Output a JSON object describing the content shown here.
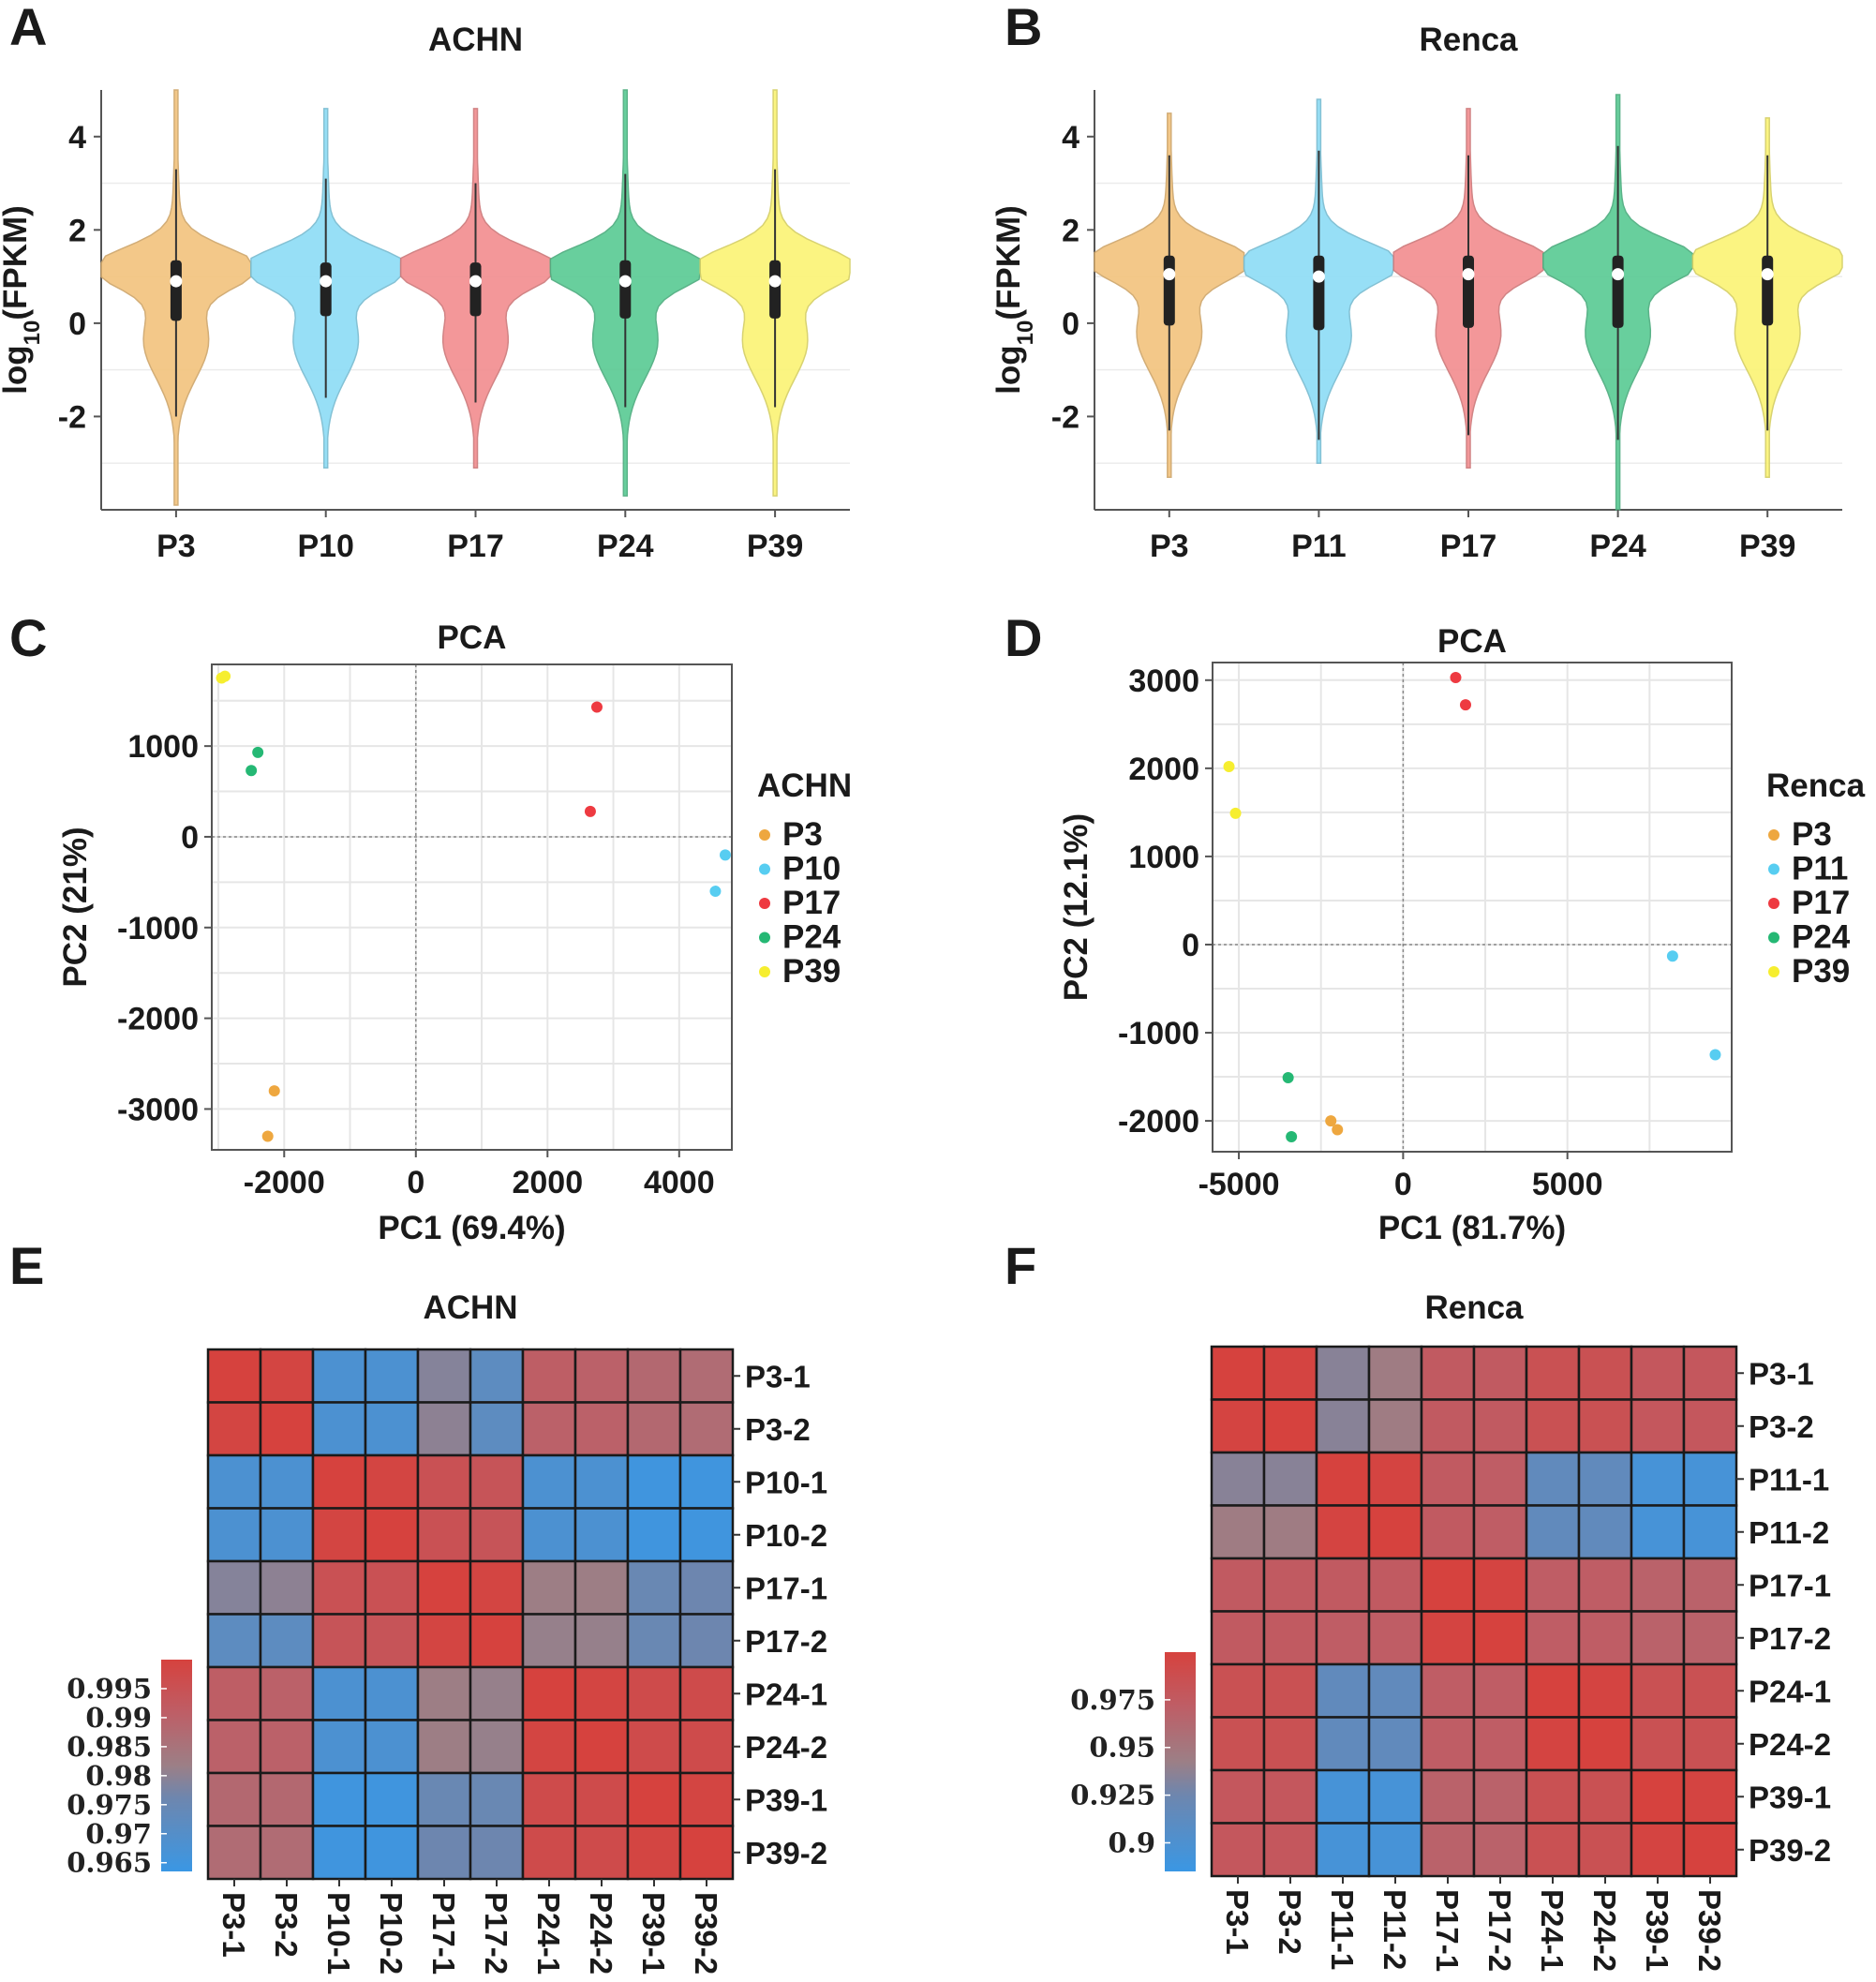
{
  "chart_data": [
    {
      "id": "A",
      "panel_label": "A",
      "type": "violin",
      "title": "ACHN",
      "ylabel": "log10(FPKM)",
      "ylabel_base": "log",
      "ylabel_sub": "10",
      "ylabel_rest": "(FPKM)",
      "ylim": [
        -4,
        5
      ],
      "yticks": [
        4,
        2,
        0,
        -2
      ],
      "ytick_labels": [
        "4",
        "2",
        "0",
        "-2"
      ],
      "categories": [
        "P3",
        "P10",
        "P17",
        "P24",
        "P39"
      ],
      "colors": [
        "#F3C47F",
        "#8FDDF6",
        "#F28F91",
        "#5CCB95",
        "#FBF477"
      ],
      "series": [
        {
          "name": "P3",
          "min": -3.9,
          "max": 5.0,
          "q1": 0.05,
          "median": 0.9,
          "q3": 1.35,
          "wlow": -2.0,
          "whigh": 3.3
        },
        {
          "name": "P10",
          "min": -3.1,
          "max": 4.6,
          "q1": 0.15,
          "median": 0.9,
          "q3": 1.3,
          "wlow": -1.6,
          "whigh": 3.1
        },
        {
          "name": "P17",
          "min": -3.1,
          "max": 4.6,
          "q1": 0.15,
          "median": 0.9,
          "q3": 1.3,
          "wlow": -1.7,
          "whigh": 3.0
        },
        {
          "name": "P24",
          "min": -3.7,
          "max": 5.0,
          "q1": 0.1,
          "median": 0.9,
          "q3": 1.35,
          "wlow": -1.8,
          "whigh": 3.2
        },
        {
          "name": "P39",
          "min": -3.7,
          "max": 5.0,
          "q1": 0.1,
          "median": 0.9,
          "q3": 1.35,
          "wlow": -1.8,
          "whigh": 3.3
        }
      ]
    },
    {
      "id": "B",
      "panel_label": "B",
      "type": "violin",
      "title": "Renca",
      "ylabel": "log10(FPKM)",
      "ylabel_base": "log",
      "ylabel_sub": "10",
      "ylabel_rest": "(FPKM)",
      "ylim": [
        -4,
        5
      ],
      "yticks": [
        4,
        2,
        0,
        -2
      ],
      "ytick_labels": [
        "4",
        "2",
        "0",
        "-2"
      ],
      "categories": [
        "P3",
        "P11",
        "P17",
        "P24",
        "P39"
      ],
      "colors": [
        "#F3C47F",
        "#8FDDF6",
        "#F28F91",
        "#5CCB95",
        "#FBF477"
      ],
      "series": [
        {
          "name": "P3",
          "min": -3.3,
          "max": 4.5,
          "q1": -0.05,
          "median": 1.05,
          "q3": 1.45,
          "wlow": -2.3,
          "whigh": 3.6
        },
        {
          "name": "P11",
          "min": -3.0,
          "max": 4.8,
          "q1": -0.15,
          "median": 1.0,
          "q3": 1.45,
          "wlow": -2.5,
          "whigh": 3.7
        },
        {
          "name": "P17",
          "min": -3.1,
          "max": 4.6,
          "q1": -0.1,
          "median": 1.05,
          "q3": 1.45,
          "wlow": -2.4,
          "whigh": 3.6
        },
        {
          "name": "P24",
          "min": -4.0,
          "max": 4.9,
          "q1": -0.1,
          "median": 1.05,
          "q3": 1.45,
          "wlow": -2.5,
          "whigh": 3.8
        },
        {
          "name": "P39",
          "min": -3.3,
          "max": 4.4,
          "q1": -0.05,
          "median": 1.05,
          "q3": 1.45,
          "wlow": -2.3,
          "whigh": 3.6
        }
      ]
    },
    {
      "id": "C",
      "panel_label": "C",
      "type": "scatter",
      "title": "PCA",
      "xlabel": "PC1 (69.4%)",
      "ylabel": "PC2 (21%)",
      "xlim": [
        -3100,
        4800
      ],
      "ylim": [
        -3450,
        1900
      ],
      "xticks": [
        -2000,
        0,
        2000,
        4000
      ],
      "xtick_labels": [
        "-2000",
        "0",
        "2000",
        "4000"
      ],
      "yticks": [
        1000,
        0,
        -1000,
        -2000,
        -3000
      ],
      "ytick_labels": [
        "1000",
        "0",
        "-1000",
        "-2000",
        "-3000"
      ],
      "xgrid_extra": [
        -3000,
        -1000,
        1000,
        3000
      ],
      "ygrid_extra": [
        1500,
        500,
        -500,
        -1500,
        -2500
      ],
      "legend_title": "ACHN",
      "legend_labels": [
        "P3",
        "P10",
        "P17",
        "P24",
        "P39"
      ],
      "colors": [
        "#EEA73F",
        "#57CDF1",
        "#EE3A41",
        "#25B874",
        "#F6EE2F"
      ],
      "series": [
        {
          "name": "P3",
          "x": [
            -2150,
            -2250
          ],
          "y": [
            -2800,
            -3300
          ]
        },
        {
          "name": "P10",
          "x": [
            4700,
            4550
          ],
          "y": [
            -200,
            -600
          ]
        },
        {
          "name": "P17",
          "x": [
            2750,
            2650
          ],
          "y": [
            1430,
            280
          ]
        },
        {
          "name": "P24",
          "x": [
            -2400,
            -2500
          ],
          "y": [
            930,
            730
          ]
        },
        {
          "name": "P39",
          "x": [
            -2900,
            -2950
          ],
          "y": [
            1770,
            1750
          ]
        }
      ]
    },
    {
      "id": "D",
      "panel_label": "D",
      "type": "scatter",
      "title": "PCA",
      "xlabel": "PC1 (81.7%)",
      "ylabel": "PC2 (12.1%)",
      "xlim": [
        -5800,
        10000
      ],
      "ylim": [
        -2350,
        3200
      ],
      "xticks": [
        -5000,
        0,
        5000
      ],
      "xtick_labels": [
        "-5000",
        "0",
        "5000"
      ],
      "yticks": [
        3000,
        2000,
        1000,
        0,
        -1000,
        -2000
      ],
      "ytick_labels": [
        "3000",
        "2000",
        "1000",
        "0",
        "-1000",
        "-2000"
      ],
      "xgrid_extra": [
        -2500,
        2500,
        7500
      ],
      "ygrid_extra": [
        2500,
        1500,
        500,
        -500,
        -1500
      ],
      "legend_title": "Renca",
      "legend_labels": [
        "P3",
        "P11",
        "P17",
        "P24",
        "P39"
      ],
      "colors": [
        "#EEA73F",
        "#57CDF1",
        "#EE3A41",
        "#25B874",
        "#F6EE2F"
      ],
      "series": [
        {
          "name": "P3",
          "x": [
            -2200,
            -2000
          ],
          "y": [
            -2000,
            -2100
          ]
        },
        {
          "name": "P11",
          "x": [
            8200,
            9500
          ],
          "y": [
            -130,
            -1250
          ]
        },
        {
          "name": "P17",
          "x": [
            1600,
            1900
          ],
          "y": [
            3030,
            2720
          ]
        },
        {
          "name": "P24",
          "x": [
            -3500,
            -3400
          ],
          "y": [
            -1510,
            -2180
          ]
        },
        {
          "name": "P39",
          "x": [
            -5300,
            -5100
          ],
          "y": [
            2020,
            1490
          ]
        }
      ]
    },
    {
      "id": "E",
      "panel_label": "E",
      "type": "heatmap",
      "title": "ACHN",
      "rows": [
        "P3-1",
        "P3-2",
        "P10-1",
        "P10-2",
        "P17-1",
        "P17-2",
        "P24-1",
        "P24-2",
        "P39-1",
        "P39-2"
      ],
      "cols": [
        "P3-1",
        "P3-2",
        "P10-1",
        "P10-2",
        "P17-1",
        "P17-2",
        "P24-1",
        "P24-2",
        "P39-1",
        "P39-2"
      ],
      "scale_min": 0.9635,
      "scale_max": 1.0,
      "colorbar_ticks": [
        0.995,
        0.99,
        0.985,
        0.98,
        0.975,
        0.97,
        0.965
      ],
      "colorbar_labels": [
        "0.995",
        "0.99",
        "0.985",
        "0.98",
        "0.975",
        "0.97",
        "0.965"
      ],
      "values": [
        [
          1.0,
          0.999,
          0.968,
          0.968,
          0.979,
          0.972,
          0.991,
          0.99,
          0.988,
          0.987
        ],
        [
          0.999,
          1.0,
          0.968,
          0.968,
          0.98,
          0.972,
          0.99,
          0.99,
          0.988,
          0.987
        ],
        [
          0.968,
          0.968,
          1.0,
          0.999,
          0.995,
          0.994,
          0.968,
          0.968,
          0.965,
          0.965
        ],
        [
          0.968,
          0.968,
          0.999,
          1.0,
          0.995,
          0.994,
          0.968,
          0.968,
          0.965,
          0.965
        ],
        [
          0.979,
          0.98,
          0.995,
          0.995,
          1.0,
          0.999,
          0.982,
          0.982,
          0.975,
          0.976
        ],
        [
          0.972,
          0.972,
          0.994,
          0.994,
          0.999,
          1.0,
          0.981,
          0.981,
          0.975,
          0.976
        ],
        [
          0.991,
          0.99,
          0.968,
          0.968,
          0.982,
          0.981,
          1.0,
          0.999,
          0.997,
          0.997
        ],
        [
          0.99,
          0.99,
          0.968,
          0.968,
          0.982,
          0.981,
          0.999,
          1.0,
          0.997,
          0.997
        ],
        [
          0.988,
          0.988,
          0.965,
          0.965,
          0.975,
          0.975,
          0.997,
          0.997,
          1.0,
          0.999
        ],
        [
          0.987,
          0.987,
          0.965,
          0.965,
          0.976,
          0.976,
          0.997,
          0.997,
          0.999,
          1.0
        ]
      ]
    },
    {
      "id": "F",
      "panel_label": "F",
      "type": "heatmap",
      "title": "Renca",
      "rows": [
        "P3-1",
        "P3-2",
        "P11-1",
        "P11-2",
        "P17-1",
        "P17-2",
        "P24-1",
        "P24-2",
        "P39-1",
        "P39-2"
      ],
      "cols": [
        "P3-1",
        "P3-2",
        "P11-1",
        "P11-2",
        "P17-1",
        "P17-2",
        "P24-1",
        "P24-2",
        "P39-1",
        "P39-2"
      ],
      "scale_min": 0.885,
      "scale_max": 1.0,
      "colorbar_ticks": [
        0.975,
        0.95,
        0.925,
        0.9
      ],
      "colorbar_labels": [
        "0.975",
        "0.95",
        "0.925",
        "0.9"
      ],
      "values": [
        [
          1.0,
          0.998,
          0.935,
          0.945,
          0.975,
          0.975,
          0.985,
          0.985,
          0.978,
          0.978
        ],
        [
          0.998,
          1.0,
          0.935,
          0.945,
          0.975,
          0.975,
          0.985,
          0.985,
          0.978,
          0.978
        ],
        [
          0.935,
          0.935,
          1.0,
          0.998,
          0.975,
          0.972,
          0.915,
          0.915,
          0.895,
          0.895
        ],
        [
          0.945,
          0.945,
          0.998,
          1.0,
          0.975,
          0.972,
          0.915,
          0.915,
          0.895,
          0.895
        ],
        [
          0.975,
          0.975,
          0.975,
          0.975,
          1.0,
          0.998,
          0.972,
          0.972,
          0.968,
          0.968
        ],
        [
          0.975,
          0.975,
          0.972,
          0.972,
          0.998,
          1.0,
          0.972,
          0.972,
          0.968,
          0.968
        ],
        [
          0.985,
          0.985,
          0.915,
          0.915,
          0.972,
          0.972,
          1.0,
          0.998,
          0.985,
          0.985
        ],
        [
          0.985,
          0.985,
          0.915,
          0.915,
          0.972,
          0.972,
          0.998,
          1.0,
          0.985,
          0.985
        ],
        [
          0.978,
          0.978,
          0.895,
          0.895,
          0.968,
          0.968,
          0.985,
          0.985,
          1.0,
          0.998
        ],
        [
          0.978,
          0.978,
          0.895,
          0.895,
          0.968,
          0.968,
          0.985,
          0.985,
          0.998,
          1.0
        ]
      ]
    }
  ]
}
